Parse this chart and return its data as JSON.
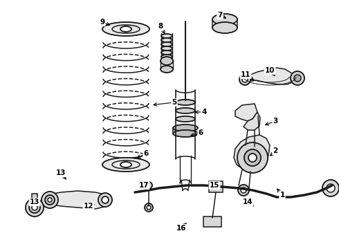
{
  "background_color": "#ffffff",
  "line_color": "#1a1a1a",
  "fig_width": 4.9,
  "fig_height": 3.6,
  "dpi": 100,
  "callouts": [
    [
      "9",
      148,
      32,
      162,
      38,
      "left"
    ],
    [
      "8",
      232,
      38,
      240,
      52,
      "left"
    ],
    [
      "7",
      318,
      22,
      330,
      28,
      "left"
    ],
    [
      "5",
      252,
      148,
      218,
      152,
      "left"
    ],
    [
      "4",
      295,
      162,
      278,
      162,
      "left"
    ],
    [
      "6",
      211,
      222,
      195,
      230,
      "left"
    ],
    [
      "6",
      290,
      192,
      272,
      197,
      "left"
    ],
    [
      "11",
      355,
      108,
      370,
      118,
      "left"
    ],
    [
      "10",
      390,
      102,
      400,
      112,
      "left"
    ],
    [
      "3",
      398,
      175,
      380,
      182,
      "left"
    ],
    [
      "2",
      398,
      218,
      388,
      228,
      "left"
    ],
    [
      "1",
      408,
      282,
      398,
      270,
      "left"
    ],
    [
      "14",
      358,
      292,
      370,
      300,
      "left"
    ],
    [
      "15",
      310,
      268,
      320,
      272,
      "left"
    ],
    [
      "16",
      262,
      330,
      272,
      320,
      "left"
    ],
    [
      "17",
      208,
      268,
      215,
      278,
      "left"
    ],
    [
      "13",
      88,
      250,
      98,
      262,
      "left"
    ],
    [
      "13",
      50,
      292,
      62,
      290,
      "left"
    ],
    [
      "12",
      128,
      298,
      140,
      295,
      "left"
    ]
  ]
}
